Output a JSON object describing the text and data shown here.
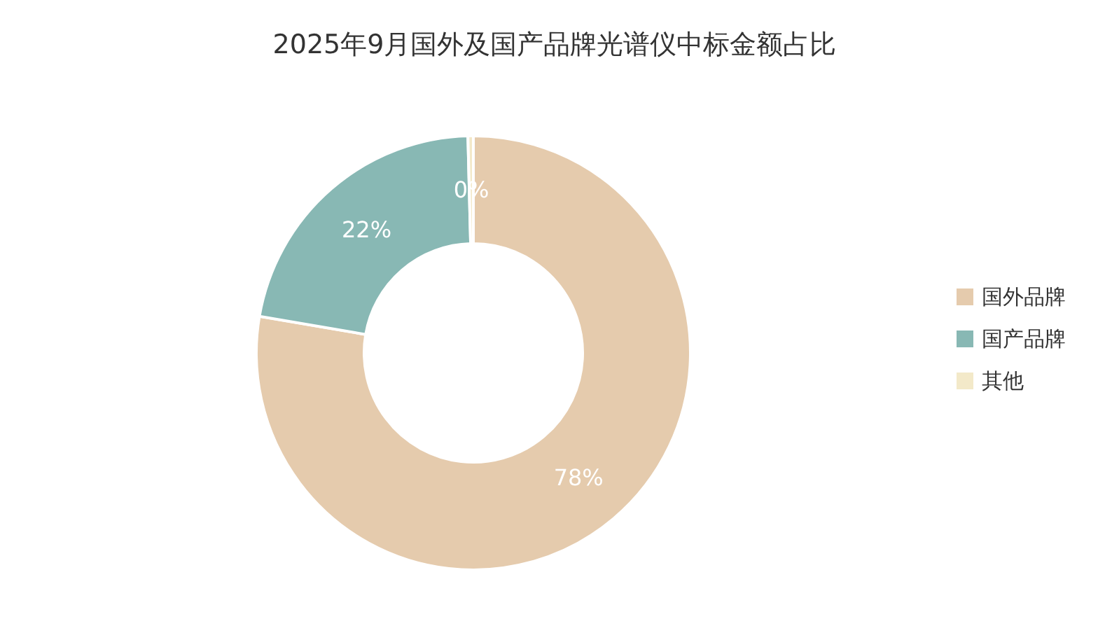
{
  "chart_data": {
    "type": "donut",
    "title": "2025年9月国外及国产品牌光谱仪中标金额占比",
    "categories": [
      "国外品牌",
      "国产品牌",
      "其他"
    ],
    "values": [
      77.7,
      21.9,
      0.4
    ],
    "colors": [
      "#e5cbad",
      "#88b8b4",
      "#f3e9c9"
    ],
    "value_labels": [
      "78%",
      "22%",
      "0%"
    ],
    "legend": "right"
  }
}
